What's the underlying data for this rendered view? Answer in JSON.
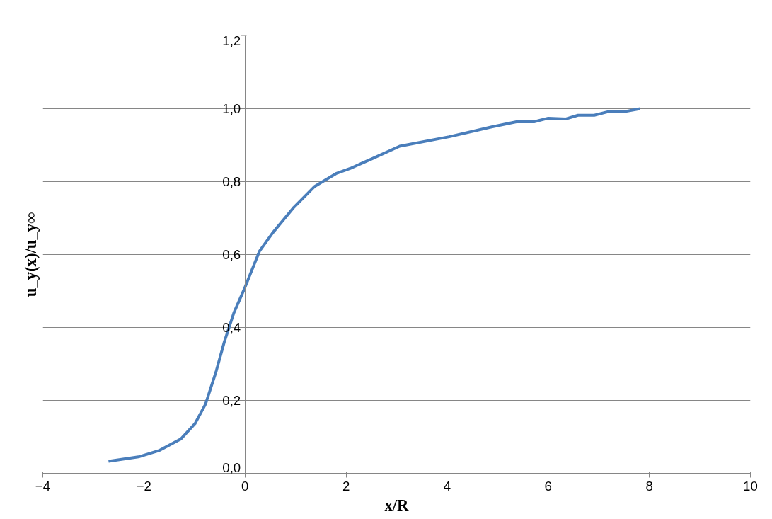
{
  "chart_data": {
    "type": "line",
    "xlabel": "x/R",
    "ylabel": "u_y(x)/u_y∞",
    "xlim": [
      -4,
      10
    ],
    "xticks": [
      -4,
      -2,
      0,
      2,
      4,
      6,
      8,
      10
    ],
    "ylim": [
      0,
      1.2
    ],
    "yticks": [
      {
        "value": 0,
        "label": "0,0"
      },
      {
        "value": 0.2,
        "label": "0,2"
      },
      {
        "value": 0.4,
        "label": "0,4"
      },
      {
        "value": 0.6,
        "label": "0,6"
      },
      {
        "value": 0.8,
        "label": "0,8"
      },
      {
        "value": 1.0,
        "label": "1,0"
      },
      {
        "value": 1.2,
        "label": "1,2"
      }
    ],
    "grid": "y",
    "marker": "none",
    "line_style": "solid",
    "series": [
      {
        "color": "#4a7ebb",
        "x": [
          -2.7,
          -2.11,
          -1.69,
          -1.27,
          -0.99,
          -0.78,
          -0.57,
          -0.41,
          -0.22,
          0,
          0.29,
          0.55,
          0.97,
          1.38,
          1.8,
          2.08,
          2.5,
          3.06,
          4.04,
          4.88,
          5.37,
          5.72,
          6.0,
          6.35,
          6.59,
          6.91,
          7.19,
          7.51,
          7.82
        ],
        "values": [
          0.033,
          0.045,
          0.063,
          0.094,
          0.136,
          0.19,
          0.28,
          0.36,
          0.44,
          0.51,
          0.61,
          0.66,
          0.73,
          0.787,
          0.822,
          0.836,
          0.862,
          0.897,
          0.923,
          0.95,
          0.964,
          0.964,
          0.974,
          0.972,
          0.982,
          0.982,
          0.992,
          0.992,
          1.0
        ]
      }
    ]
  }
}
